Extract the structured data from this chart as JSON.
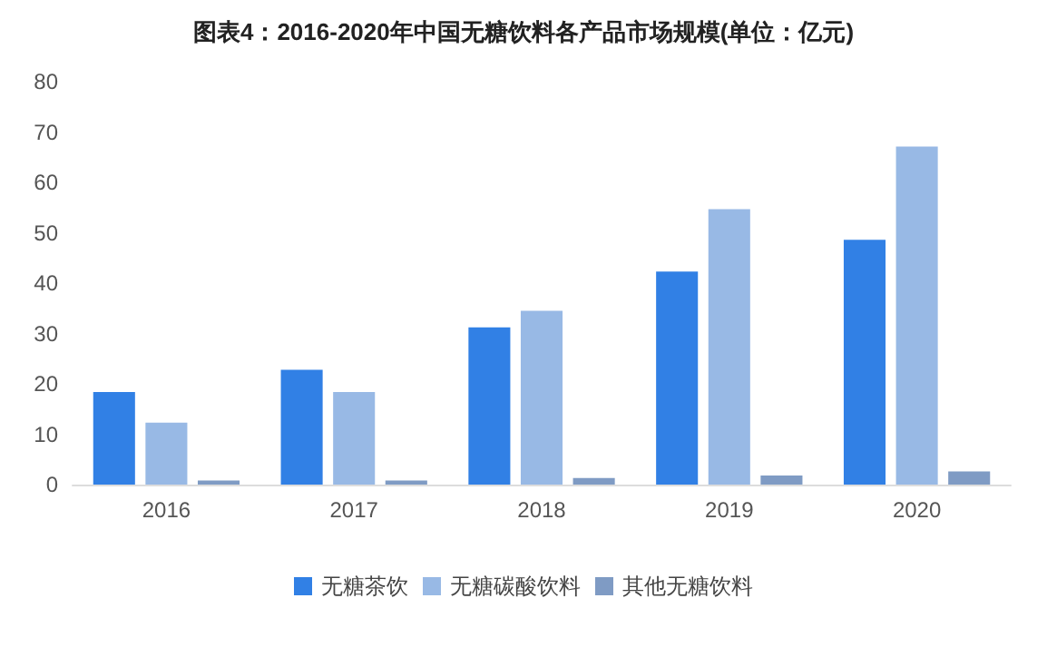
{
  "chart_data": {
    "type": "bar",
    "title": "图表4：2016-2020年中国无糖饮料各产品市场规模(单位：亿元)",
    "categories": [
      "2016",
      "2017",
      "2018",
      "2019",
      "2020"
    ],
    "series": [
      {
        "name": "无糖茶饮",
        "color": "#3180e5",
        "values": [
          18.4,
          22.8,
          31.2,
          42.3,
          48.6
        ]
      },
      {
        "name": "无糖碳酸饮料",
        "color": "#98b9e5",
        "values": [
          12.3,
          18.4,
          34.5,
          54.7,
          67.1
        ]
      },
      {
        "name": "其他无糖饮料",
        "color": "#7f9bc4",
        "values": [
          0.8,
          0.8,
          1.3,
          1.8,
          2.6
        ]
      }
    ],
    "ylim": [
      0,
      80
    ],
    "yticks": [
      0,
      10,
      20,
      30,
      40,
      50,
      60,
      70,
      80
    ],
    "grid": false,
    "legend": "bottom"
  }
}
